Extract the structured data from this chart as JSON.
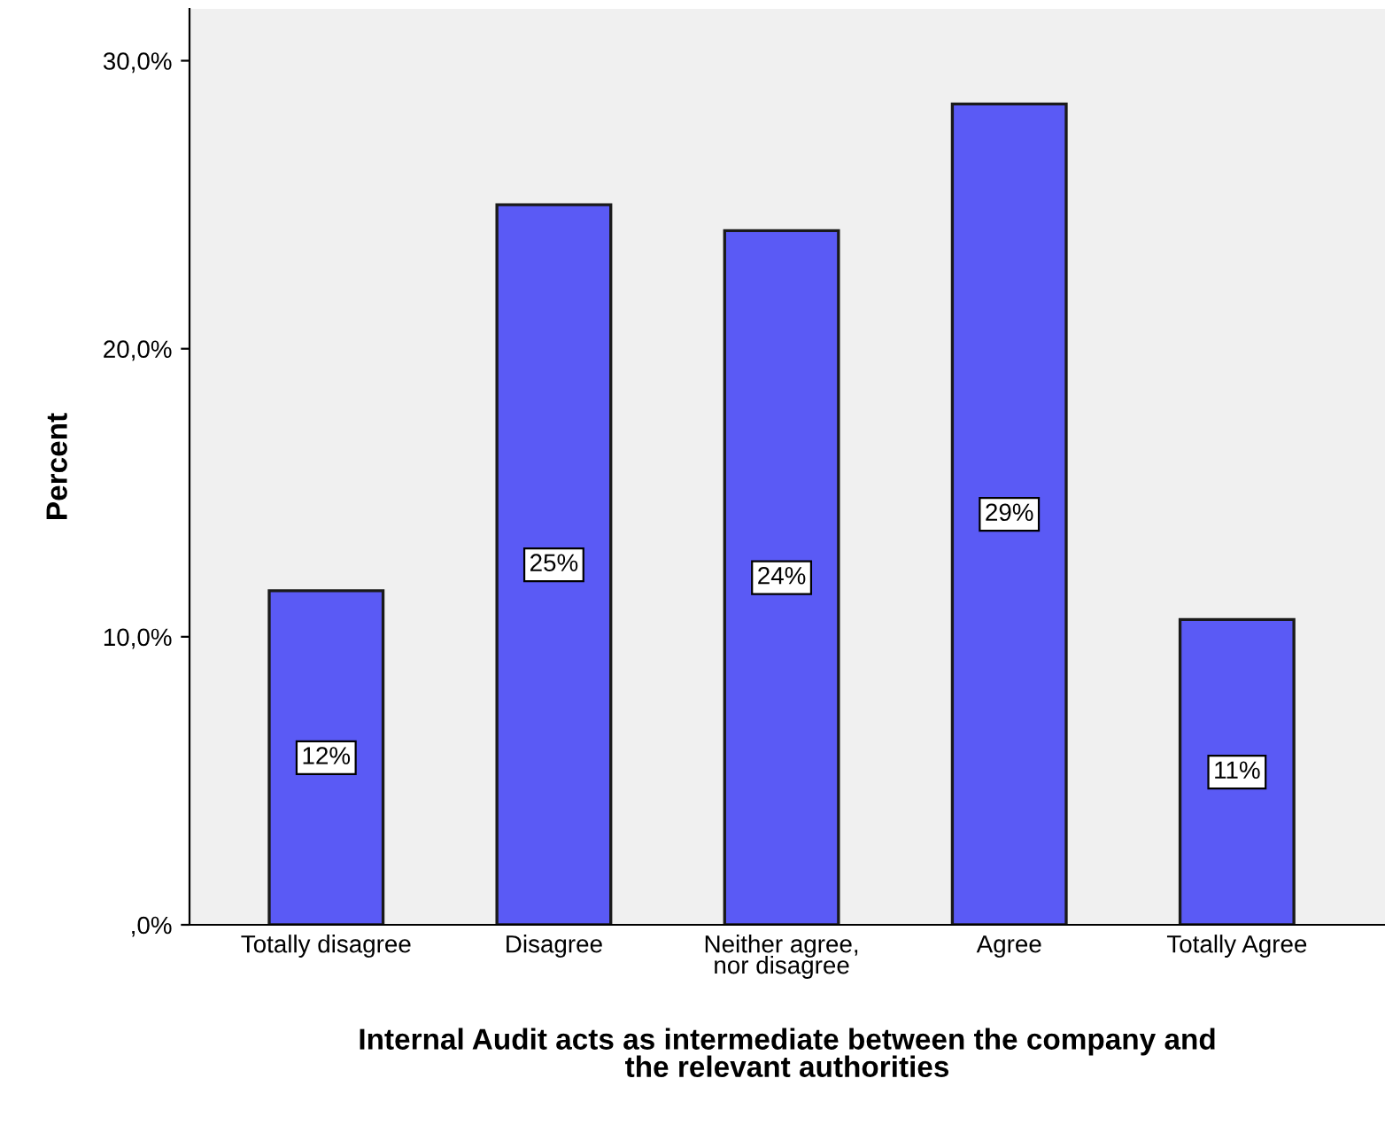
{
  "chart_data": {
    "type": "bar",
    "xlabel": "Internal Audit acts as intermediate between the company and\nthe relevant authorities",
    "ylabel": "Percent",
    "categories": [
      "Totally disagree",
      "Disagree",
      "Neither agree,\nnor disagree",
      "Agree",
      "Totally Agree"
    ],
    "values": [
      11.6,
      25.0,
      24.1,
      28.5,
      10.6
    ],
    "value_labels": [
      "12%",
      "25%",
      "24%",
      "29%",
      "11%"
    ],
    "color": "#5a5af5",
    "ylim": [
      0,
      31.8
    ],
    "yticks": [
      {
        "value": 0,
        "label": ",0%"
      },
      {
        "value": 10,
        "label": "10,0%"
      },
      {
        "value": 20,
        "label": "20,0%"
      },
      {
        "value": 30,
        "label": "30,0%"
      }
    ],
    "grid": false
  }
}
